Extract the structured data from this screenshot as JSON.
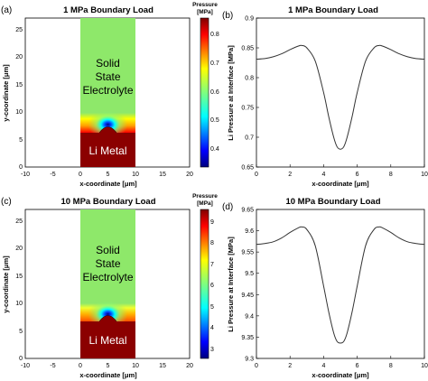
{
  "colors": {
    "li_metal": "#8b0000",
    "curve": "#333333",
    "axis": "#000000"
  },
  "panels": [
    {
      "label": "(a)",
      "title": "1 MPa Boundary Load",
      "x_ticks": [
        "-10",
        "-5",
        "0",
        "5",
        "10",
        "15",
        "20"
      ],
      "y_ticks": [
        "0",
        "5",
        "10",
        "15",
        "20",
        "25"
      ],
      "xlabel": "x-coordinate [μm]",
      "ylabel": "y-coordinate [μm]",
      "region_top": [
        "Solid",
        "State",
        "Electrolyte"
      ],
      "region_bottom": "Li Metal",
      "colorbar_title": [
        "Pressure",
        "[MPa]"
      ],
      "colorbar_ticks": [
        "0.8",
        "0.7",
        "0.6",
        "0.5",
        "0.4"
      ]
    },
    {
      "label": "(c)",
      "title": "10 MPa Boundary Load",
      "x_ticks": [
        "-10",
        "-5",
        "0",
        "5",
        "10",
        "15",
        "20"
      ],
      "y_ticks": [
        "0",
        "5",
        "10",
        "15",
        "20",
        "25"
      ],
      "xlabel": "x-coordinate [μm]",
      "ylabel": "y-coordinate [μm]",
      "region_top": [
        "Solid",
        "State",
        "Electrolyte"
      ],
      "region_bottom": "Li Metal",
      "colorbar_title": [
        "Pressure",
        "[MPa]"
      ],
      "colorbar_ticks": [
        "9",
        "8",
        "7",
        "6",
        "5",
        "4",
        "3"
      ]
    }
  ],
  "chart_data": [
    {
      "type": "heatmap",
      "panel": "(a)",
      "title": "1 MPa Boundary Load",
      "xlabel": "x-coordinate [μm]",
      "ylabel": "y-coordinate [μm]",
      "xlim": [
        -10,
        20
      ],
      "ylim": [
        0,
        27
      ],
      "domain_x": [
        0,
        10
      ],
      "li_metal_top": 6,
      "notch_center": [
        5,
        7.4
      ],
      "colorbar_range": [
        0.35,
        0.88
      ],
      "colorbar_ticks": [
        0.4,
        0.5,
        0.6,
        0.7,
        0.8
      ]
    },
    {
      "type": "line",
      "panel": "(b)",
      "title": "1 MPa Boundary Load",
      "xlabel": "x-coordinate [μm]",
      "ylabel": "Li Pressure at Interface [MPa]",
      "xlim": [
        0,
        10
      ],
      "ylim": [
        0.65,
        0.9
      ],
      "x_ticks": [
        "0",
        "2",
        "4",
        "6",
        "8",
        "10"
      ],
      "y_ticks": [
        "0.65",
        "0.7",
        "0.75",
        "0.8",
        "0.85",
        "0.9"
      ],
      "series": [
        {
          "x": [
            0,
            0.5,
            1,
            1.5,
            2,
            2.5,
            2.7,
            3,
            3.5,
            4,
            4.3,
            4.6,
            4.8,
            5,
            5.2,
            5.4,
            5.7,
            6,
            6.5,
            7,
            7.3,
            7.5,
            8,
            8.5,
            9,
            9.5,
            10
          ],
          "y": [
            0.831,
            0.832,
            0.835,
            0.84,
            0.847,
            0.853,
            0.854,
            0.85,
            0.828,
            0.775,
            0.735,
            0.7,
            0.684,
            0.68,
            0.684,
            0.7,
            0.735,
            0.775,
            0.828,
            0.85,
            0.854,
            0.853,
            0.847,
            0.84,
            0.835,
            0.832,
            0.831
          ]
        }
      ]
    },
    {
      "type": "heatmap",
      "panel": "(c)",
      "title": "10 MPa Boundary Load",
      "xlabel": "x-coordinate [μm]",
      "ylabel": "y-coordinate [μm]",
      "xlim": [
        -10,
        20
      ],
      "ylim": [
        0,
        27
      ],
      "domain_x": [
        0,
        10
      ],
      "li_metal_top": 6,
      "notch_center": [
        5,
        7.4
      ],
      "colorbar_range": [
        2.7,
        9.7
      ],
      "colorbar_ticks": [
        3,
        4,
        5,
        6,
        7,
        8,
        9
      ]
    },
    {
      "type": "line",
      "panel": "(d)",
      "title": "10 MPa Boundary Load",
      "xlabel": "x-coordinate [μm]",
      "ylabel": "Li Pressure at Interface [MPa]",
      "xlim": [
        0,
        10
      ],
      "ylim": [
        9.3,
        9.65
      ],
      "x_ticks": [
        "0",
        "2",
        "4",
        "6",
        "8",
        "10"
      ],
      "y_ticks": [
        "9.3",
        "9.35",
        "9.4",
        "9.45",
        "9.5",
        "9.55",
        "9.6",
        "9.65"
      ],
      "series": [
        {
          "x": [
            0,
            0.5,
            1,
            1.5,
            2,
            2.5,
            2.7,
            3,
            3.5,
            4,
            4.3,
            4.6,
            4.8,
            5,
            5.2,
            5.4,
            5.7,
            6,
            6.5,
            7,
            7.3,
            7.5,
            8,
            8.5,
            9,
            9.5,
            10
          ],
          "y": [
            9.568,
            9.57,
            9.574,
            9.583,
            9.596,
            9.607,
            9.609,
            9.603,
            9.565,
            9.47,
            9.41,
            9.36,
            9.34,
            9.336,
            9.34,
            9.36,
            9.41,
            9.47,
            9.565,
            9.603,
            9.609,
            9.607,
            9.596,
            9.583,
            9.574,
            9.57,
            9.568
          ]
        }
      ]
    }
  ],
  "line_panels": [
    {
      "label": "(b)",
      "title": "1 MPa Boundary Load",
      "xlabel": "x-coordinate [μm]",
      "ylabel": "Li Pressure at Interface [MPa]"
    },
    {
      "label": "(d)",
      "title": "10 MPa Boundary Load",
      "xlabel": "x-coordinate [μm]",
      "ylabel": "Li Pressure at Interface [MPa]"
    }
  ]
}
